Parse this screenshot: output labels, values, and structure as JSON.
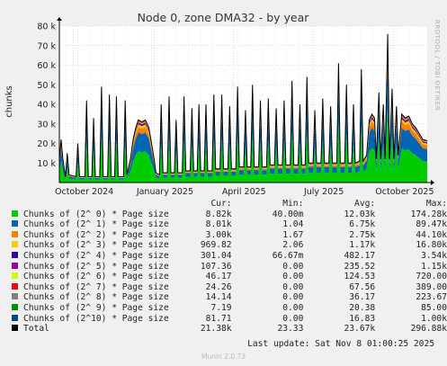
{
  "chart_data": {
    "type": "area",
    "title": "Node 0, zone DMA32 - by year",
    "ylabel": "chunks",
    "side_label": "RRDTOOL / TOBI OETIKER",
    "ylim": [
      0,
      80000
    ],
    "yticks": [
      {
        "value": 10000,
        "label": "10 k"
      },
      {
        "value": 20000,
        "label": "20 k"
      },
      {
        "value": 30000,
        "label": "30 k"
      },
      {
        "value": 40000,
        "label": "40 k"
      },
      {
        "value": 50000,
        "label": "50 k"
      },
      {
        "value": 60000,
        "label": "60 k"
      },
      {
        "value": 70000,
        "label": "70 k"
      },
      {
        "value": 80000,
        "label": "80 k"
      }
    ],
    "xlim": [
      "2024-09-15",
      "2025-11-08"
    ],
    "xticks": [
      {
        "date": "2024-10-01",
        "label": "October 2024"
      },
      {
        "date": "2025-01-01",
        "label": "January 2025"
      },
      {
        "date": "2025-04-01",
        "label": "April 2025"
      },
      {
        "date": "2025-07-01",
        "label": "July 2025"
      },
      {
        "date": "2025-10-01",
        "label": "October 2025"
      }
    ],
    "columns": [
      "Cur:",
      "Min:",
      "Avg:",
      "Max:"
    ],
    "series": [
      {
        "name": "Chunks of (2^ 0) * Page size",
        "color": "#00cc00",
        "cur": "8.82k",
        "min": "40.00m",
        "avg": "12.03k",
        "max": "174.28k"
      },
      {
        "name": "Chunks of (2^ 1) * Page size",
        "color": "#0066b3",
        "cur": "8.01k",
        "min": "1.04",
        "avg": "6.75k",
        "max": "89.47k"
      },
      {
        "name": "Chunks of (2^ 2) * Page size",
        "color": "#ff8000",
        "cur": "3.00k",
        "min": "1.67",
        "avg": "2.75k",
        "max": "44.10k"
      },
      {
        "name": "Chunks of (2^ 3) * Page size",
        "color": "#ffcc00",
        "cur": "969.82",
        "min": "2.06",
        "avg": "1.17k",
        "max": "16.80k"
      },
      {
        "name": "Chunks of (2^ 4) * Page size",
        "color": "#330099",
        "cur": "301.04",
        "min": "66.67m",
        "avg": "482.17",
        "max": "3.54k"
      },
      {
        "name": "Chunks of (2^ 5) * Page size",
        "color": "#990099",
        "cur": "107.36",
        "min": "0.00",
        "avg": "235.52",
        "max": "1.15k"
      },
      {
        "name": "Chunks of (2^ 6) * Page size",
        "color": "#ccff00",
        "cur": "46.17",
        "min": "0.00",
        "avg": "124.53",
        "max": "720.00"
      },
      {
        "name": "Chunks of (2^ 7) * Page size",
        "color": "#ff0000",
        "cur": "24.26",
        "min": "0.00",
        "avg": "67.56",
        "max": "389.00"
      },
      {
        "name": "Chunks of (2^ 8) * Page size",
        "color": "#808080",
        "cur": "14.14",
        "min": "0.00",
        "avg": "36.17",
        "max": "223.67"
      },
      {
        "name": "Chunks of (2^ 9) * Page size",
        "color": "#008f00",
        "cur": "7.19",
        "min": "0.00",
        "avg": "20.38",
        "max": "85.00"
      },
      {
        "name": "Chunks of (2^10) * Page size",
        "color": "#00487d",
        "cur": "81.71",
        "min": "0.00",
        "avg": "16.83",
        "max": "1.00k"
      },
      {
        "name": "Total",
        "color": "#000000",
        "cur": "21.38k",
        "min": "23.33",
        "avg": "23.67k",
        "max": "296.88k"
      }
    ],
    "total_line": [
      [
        "2024-09-15",
        12000
      ],
      [
        "2024-09-17",
        22000
      ],
      [
        "2024-09-19",
        12000
      ],
      [
        "2024-09-22",
        3000
      ],
      [
        "2024-09-24",
        15000
      ],
      [
        "2024-09-26",
        4000
      ],
      [
        "2024-10-04",
        3000
      ],
      [
        "2024-10-06",
        20000
      ],
      [
        "2024-10-08",
        3000
      ],
      [
        "2024-10-14",
        3000
      ],
      [
        "2024-10-16",
        42000
      ],
      [
        "2024-10-18",
        3000
      ],
      [
        "2024-10-22",
        3000
      ],
      [
        "2024-10-24",
        33000
      ],
      [
        "2024-10-26",
        3000
      ],
      [
        "2024-10-31",
        3000
      ],
      [
        "2024-11-02",
        49000
      ],
      [
        "2024-11-04",
        3000
      ],
      [
        "2024-11-09",
        3000
      ],
      [
        "2024-11-11",
        45000
      ],
      [
        "2024-11-13",
        3000
      ],
      [
        "2024-11-17",
        3000
      ],
      [
        "2024-11-19",
        44000
      ],
      [
        "2024-11-21",
        3000
      ],
      [
        "2024-11-27",
        3000
      ],
      [
        "2024-11-29",
        42000
      ],
      [
        "2024-12-01",
        4000
      ],
      [
        "2024-12-05",
        12000
      ],
      [
        "2024-12-08",
        22000
      ],
      [
        "2024-12-11",
        28000
      ],
      [
        "2024-12-14",
        32000
      ],
      [
        "2024-12-18",
        31000
      ],
      [
        "2024-12-22",
        32000
      ],
      [
        "2024-12-26",
        28000
      ],
      [
        "2024-12-29",
        20000
      ],
      [
        "2025-01-01",
        12000
      ],
      [
        "2025-01-03",
        5000
      ],
      [
        "2025-01-07",
        4000
      ],
      [
        "2025-01-09",
        40000
      ],
      [
        "2025-01-11",
        5000
      ],
      [
        "2025-01-16",
        5000
      ],
      [
        "2025-01-18",
        44000
      ],
      [
        "2025-01-20",
        5000
      ],
      [
        "2025-01-24",
        5000
      ],
      [
        "2025-01-26",
        32000
      ],
      [
        "2025-01-28",
        5000
      ],
      [
        "2025-02-02",
        5000
      ],
      [
        "2025-02-04",
        44000
      ],
      [
        "2025-02-06",
        6000
      ],
      [
        "2025-02-11",
        6000
      ],
      [
        "2025-02-13",
        38000
      ],
      [
        "2025-02-15",
        6000
      ],
      [
        "2025-02-19",
        6000
      ],
      [
        "2025-02-21",
        40000
      ],
      [
        "2025-02-23",
        6000
      ],
      [
        "2025-02-27",
        6000
      ],
      [
        "2025-03-01",
        40000
      ],
      [
        "2025-03-03",
        6000
      ],
      [
        "2025-03-08",
        6000
      ],
      [
        "2025-03-10",
        45000
      ],
      [
        "2025-03-12",
        7000
      ],
      [
        "2025-03-17",
        7000
      ],
      [
        "2025-03-19",
        45000
      ],
      [
        "2025-03-21",
        7000
      ],
      [
        "2025-03-26",
        7000
      ],
      [
        "2025-03-28",
        39000
      ],
      [
        "2025-03-30",
        7000
      ],
      [
        "2025-04-04",
        7000
      ],
      [
        "2025-04-06",
        49000
      ],
      [
        "2025-04-08",
        8000
      ],
      [
        "2025-04-13",
        8000
      ],
      [
        "2025-04-15",
        37000
      ],
      [
        "2025-04-17",
        8000
      ],
      [
        "2025-04-21",
        8000
      ],
      [
        "2025-04-23",
        50000
      ],
      [
        "2025-04-25",
        8000
      ],
      [
        "2025-04-30",
        8000
      ],
      [
        "2025-05-02",
        42000
      ],
      [
        "2025-05-04",
        8000
      ],
      [
        "2025-05-09",
        8000
      ],
      [
        "2025-05-11",
        43000
      ],
      [
        "2025-05-13",
        9000
      ],
      [
        "2025-05-18",
        9000
      ],
      [
        "2025-05-20",
        38000
      ],
      [
        "2025-05-22",
        9000
      ],
      [
        "2025-05-27",
        9000
      ],
      [
        "2025-05-29",
        42000
      ],
      [
        "2025-05-31",
        9000
      ],
      [
        "2025-06-05",
        9000
      ],
      [
        "2025-06-07",
        52000
      ],
      [
        "2025-06-09",
        9000
      ],
      [
        "2025-06-14",
        9000
      ],
      [
        "2025-06-16",
        40000
      ],
      [
        "2025-06-18",
        9000
      ],
      [
        "2025-06-22",
        9000
      ],
      [
        "2025-06-24",
        54000
      ],
      [
        "2025-06-26",
        10000
      ],
      [
        "2025-07-01",
        10000
      ],
      [
        "2025-07-03",
        37000
      ],
      [
        "2025-07-05",
        10000
      ],
      [
        "2025-07-10",
        10000
      ],
      [
        "2025-07-12",
        43000
      ],
      [
        "2025-07-14",
        10000
      ],
      [
        "2025-07-19",
        10000
      ],
      [
        "2025-07-21",
        39000
      ],
      [
        "2025-07-23",
        10000
      ],
      [
        "2025-07-28",
        10000
      ],
      [
        "2025-07-30",
        61000
      ],
      [
        "2025-08-01",
        10000
      ],
      [
        "2025-08-06",
        10000
      ],
      [
        "2025-08-08",
        50000
      ],
      [
        "2025-08-10",
        10000
      ],
      [
        "2025-08-14",
        10000
      ],
      [
        "2025-08-16",
        40000
      ],
      [
        "2025-08-18",
        10000
      ],
      [
        "2025-08-23",
        11000
      ],
      [
        "2025-08-25",
        58000
      ],
      [
        "2025-08-27",
        11000
      ],
      [
        "2025-08-31",
        14000
      ],
      [
        "2025-09-03",
        32000
      ],
      [
        "2025-09-06",
        35000
      ],
      [
        "2025-09-09",
        33000
      ],
      [
        "2025-09-11",
        12000
      ],
      [
        "2025-09-14",
        46000
      ],
      [
        "2025-09-16",
        12000
      ],
      [
        "2025-09-19",
        40000
      ],
      [
        "2025-09-21",
        12000
      ],
      [
        "2025-09-24",
        76000
      ],
      [
        "2025-09-26",
        12000
      ],
      [
        "2025-09-29",
        48000
      ],
      [
        "2025-10-01",
        12000
      ],
      [
        "2025-10-04",
        39000
      ],
      [
        "2025-10-06",
        14000
      ],
      [
        "2025-10-10",
        35000
      ],
      [
        "2025-10-14",
        33000
      ],
      [
        "2025-10-18",
        34000
      ],
      [
        "2025-10-22",
        30000
      ],
      [
        "2025-10-26",
        28000
      ],
      [
        "2025-10-30",
        25000
      ],
      [
        "2025-11-03",
        22000
      ],
      [
        "2025-11-08",
        21380
      ]
    ]
  },
  "footer": {
    "last_update": "Last update:  Sat Nov  8 01:00:25 2025",
    "munin_version": "Munin 2.0.73"
  }
}
